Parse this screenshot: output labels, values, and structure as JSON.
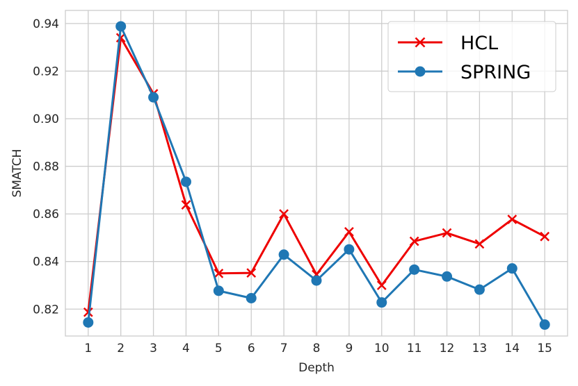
{
  "chart_data": {
    "type": "line",
    "title": "",
    "xlabel": "Depth",
    "ylabel": "SMATCH",
    "x": [
      1,
      2,
      3,
      4,
      5,
      6,
      7,
      8,
      9,
      10,
      11,
      12,
      13,
      14,
      15
    ],
    "xticks": [
      "1",
      "2",
      "3",
      "4",
      "5",
      "6",
      "7",
      "8",
      "9",
      "10",
      "11",
      "12",
      "13",
      "14",
      "15"
    ],
    "yticks": [
      "0.82",
      "0.84",
      "0.86",
      "0.88",
      "0.90",
      "0.92",
      "0.94"
    ],
    "xlim": [
      0.3,
      15.7
    ],
    "ylim": [
      0.8087,
      0.9455
    ],
    "grid": true,
    "legend_position": "top-right",
    "series": [
      {
        "name": "HCL",
        "color": "#ee0000",
        "marker": "x",
        "values": [
          0.8187,
          0.934,
          0.9105,
          0.8638,
          0.835,
          0.8352,
          0.86,
          0.8345,
          0.8525,
          0.83,
          0.8485,
          0.852,
          0.8474,
          0.8577,
          0.8505
        ]
      },
      {
        "name": "SPRING",
        "color": "#1f77b4",
        "marker": "o",
        "values": [
          0.8144,
          0.9388,
          0.909,
          0.8735,
          0.8277,
          0.8246,
          0.8429,
          0.832,
          0.8451,
          0.8228,
          0.8366,
          0.8337,
          0.8282,
          0.8371,
          0.8135
        ]
      }
    ]
  }
}
